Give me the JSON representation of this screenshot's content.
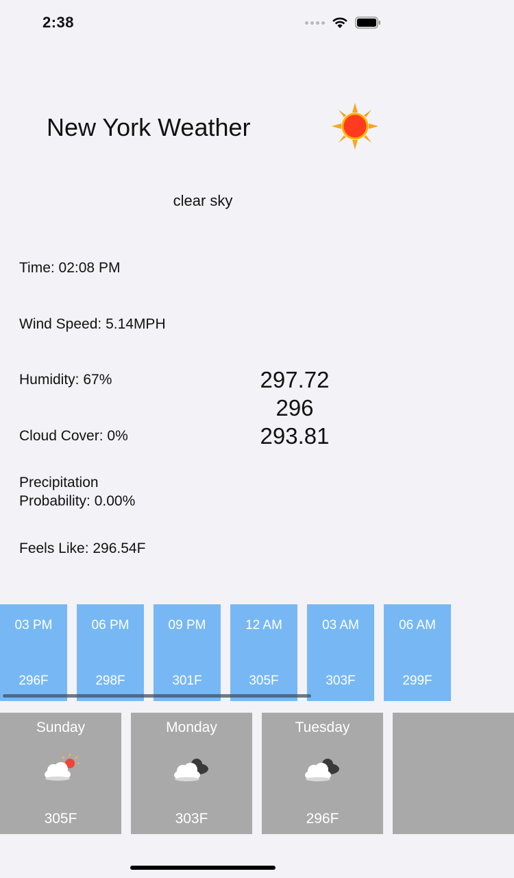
{
  "status_bar": {
    "time": "2:38"
  },
  "header": {
    "title": "New York Weather",
    "icon": "sun-icon"
  },
  "current": {
    "description": "clear sky",
    "time": "Time: 02:08 PM",
    "wind_speed": "Wind Speed: 5.14MPH",
    "humidity": "Humidity: 67%",
    "cloud_cover": "Cloud Cover: 0%",
    "precipitation_line1": "Precipitation",
    "precipitation_line2": "Probability: 0.00%",
    "feels_like": "Feels Like: 296.54F",
    "temps": [
      "297.72",
      "296",
      "293.81"
    ]
  },
  "hourly": [
    {
      "time": "03 PM",
      "temp": "296F"
    },
    {
      "time": "06 PM",
      "temp": "298F"
    },
    {
      "time": "09 PM",
      "temp": "301F"
    },
    {
      "time": "12 AM",
      "temp": "305F"
    },
    {
      "time": "03 AM",
      "temp": "303F"
    },
    {
      "time": "06 AM",
      "temp": "299F"
    }
  ],
  "daily": [
    {
      "day": "Sunday",
      "icon": "sun-behind-cloud-icon",
      "temp": "305F"
    },
    {
      "day": "Monday",
      "icon": "cloudy-icon",
      "temp": "303F"
    },
    {
      "day": "Tuesday",
      "icon": "cloudy-icon",
      "temp": "296F"
    }
  ],
  "colors": {
    "hourly_card": "#77b8f4",
    "daily_card": "#a9a9a9",
    "background": "#f2f2f7"
  }
}
